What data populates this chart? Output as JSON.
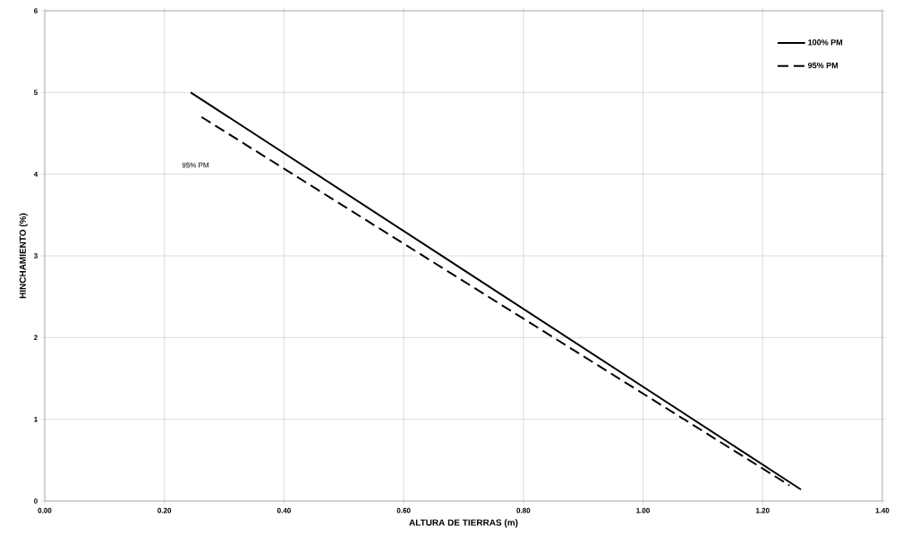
{
  "chart_data": {
    "type": "line",
    "xlabel": "ALTURA DE TIERRAS (m)",
    "ylabel": "HINCHAMIENTO (%)",
    "xlim": [
      0,
      1.4
    ],
    "ylim": [
      0,
      6
    ],
    "xticks": [
      {
        "value": 0,
        "label": "0.00"
      },
      {
        "value": 0.2,
        "label": "0.20"
      },
      {
        "value": 0.4,
        "label": "0.40"
      },
      {
        "value": 0.6,
        "label": "0.60"
      },
      {
        "value": 0.8,
        "label": "0.80"
      },
      {
        "value": 1.0,
        "label": "1.00"
      },
      {
        "value": 1.2,
        "label": "1.20"
      },
      {
        "value": 1.4,
        "label": "1.40"
      }
    ],
    "yticks": [
      0,
      1,
      2,
      3,
      4,
      5,
      6
    ],
    "grid": true,
    "legend": "top right",
    "marker": "none",
    "series": [
      {
        "name": "100% PM",
        "color": "#000000",
        "line_style": "solid",
        "x": [
          0.244,
          1.264
        ],
        "values": [
          5.0,
          0.14
        ]
      },
      {
        "name": "95% PM",
        "color": "#000000",
        "line_style": "dashed",
        "x": [
          0.262,
          1.245
        ],
        "values": [
          4.7,
          0.19
        ]
      }
    ],
    "annotations": [
      "95% PM"
    ]
  }
}
